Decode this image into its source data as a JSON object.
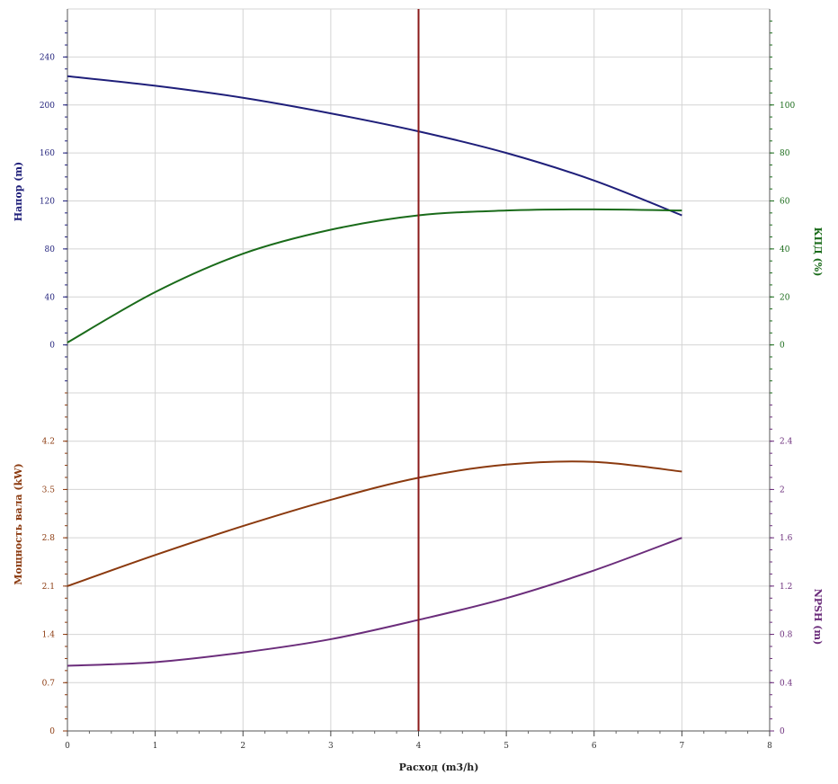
{
  "chart_data": {
    "type": "line",
    "xlabel": "Расход (m3/h)",
    "xlim": [
      0,
      8
    ],
    "xticks": [
      "0",
      "1",
      "2",
      "3",
      "4",
      "5",
      "6",
      "7",
      "8"
    ],
    "operating_point_x": 4,
    "operating_line_color": "#8b1a1a",
    "panels": [
      {
        "name": "top",
        "left_axis": {
          "label": "Напор (m)",
          "color": "#1f1f7a",
          "ticks": [
            "0",
            "40",
            "80",
            "120",
            "160",
            "200",
            "240"
          ],
          "range": [
            -40,
            280
          ]
        },
        "right_axis": {
          "label": "КПД (%)",
          "color": "#1a6b1a",
          "ticks": [
            "0",
            "20",
            "40",
            "60",
            "80",
            "100"
          ],
          "range": [
            -20,
            140
          ]
        },
        "series": [
          {
            "axis": "left",
            "color": "#1f1f7a",
            "x": [
              0,
              1,
              2,
              3,
              4,
              5,
              6,
              7
            ],
            "y": [
              224,
              216,
              206,
              193,
              178,
              160,
              137,
              108
            ]
          },
          {
            "axis": "right",
            "color": "#1a6b1a",
            "x": [
              0,
              1,
              2,
              3,
              4,
              5,
              6,
              7
            ],
            "y": [
              1,
              22,
              38,
              48,
              54,
              56,
              56.5,
              56
            ]
          }
        ]
      },
      {
        "name": "bottom",
        "left_axis": {
          "label": "Мощность вала (kW)",
          "color": "#8b3a0f",
          "ticks": [
            "0",
            "0.7",
            "1.4",
            "2.1",
            "2.8",
            "3.5",
            "4.2"
          ],
          "range": [
            0,
            4.9
          ]
        },
        "right_axis": {
          "label": "NPSH (m)",
          "color": "#6b2d7b",
          "ticks": [
            "0",
            "0.4",
            "0.8",
            "1.2",
            "1.6",
            "2",
            "2.4"
          ],
          "range": [
            0,
            2.8
          ]
        },
        "series": [
          {
            "axis": "left",
            "color": "#8b3a0f",
            "x": [
              0,
              1,
              2,
              3,
              4,
              5,
              6,
              7
            ],
            "y": [
              2.1,
              2.55,
              2.97,
              3.35,
              3.67,
              3.86,
              3.9,
              3.76
            ]
          },
          {
            "axis": "right",
            "color": "#6b2d7b",
            "x": [
              0,
              1,
              2,
              3,
              4,
              5,
              6,
              7
            ],
            "y": [
              0.54,
              0.57,
              0.65,
              0.76,
              0.92,
              1.1,
              1.33,
              1.6
            ]
          }
        ]
      }
    ]
  }
}
